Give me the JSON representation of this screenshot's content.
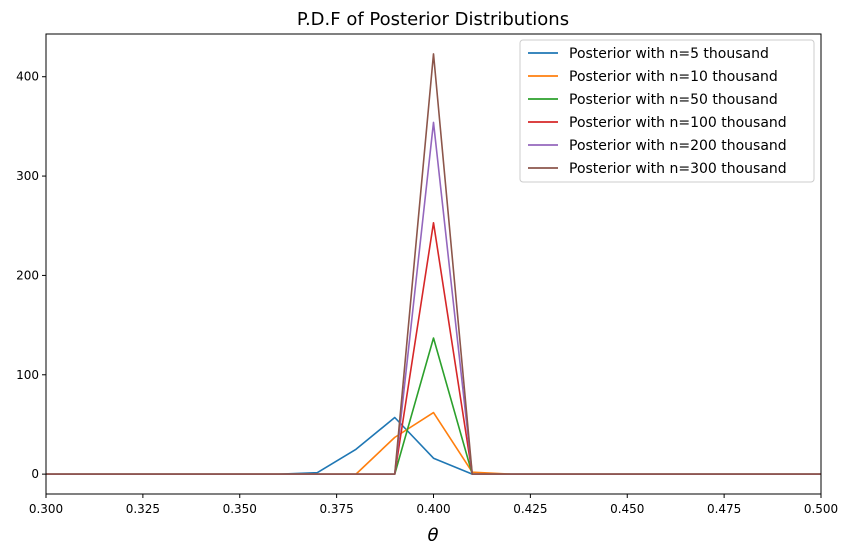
{
  "chart_data": {
    "type": "line",
    "title": "P.D.F of Posterior Distributions",
    "xlabel": "θ",
    "ylabel": "",
    "xlim": [
      0.3,
      0.5
    ],
    "ylim": [
      -20,
      443
    ],
    "xticks": [
      0.3,
      0.325,
      0.35,
      0.375,
      0.4,
      0.425,
      0.45,
      0.475,
      0.5
    ],
    "xtick_labels": [
      "0.300",
      "0.325",
      "0.350",
      "0.375",
      "0.400",
      "0.425",
      "0.450",
      "0.475",
      "0.500"
    ],
    "yticks": [
      0,
      100,
      200,
      300,
      400
    ],
    "ytick_labels": [
      "0",
      "100",
      "200",
      "300",
      "400"
    ],
    "grid": false,
    "legend_position": "top-right",
    "x": [
      0.3,
      0.31,
      0.32,
      0.33,
      0.34,
      0.35,
      0.36,
      0.37,
      0.38,
      0.39,
      0.4,
      0.41,
      0.42,
      0.43,
      0.44,
      0.45,
      0.46,
      0.47,
      0.48,
      0.49,
      0.5
    ],
    "series": [
      {
        "name": "Posterior with n=5 thousand",
        "color": "#1f77b4",
        "values": [
          0,
          0,
          0,
          0,
          0,
          0,
          0,
          1.5,
          25,
          57,
          16,
          0,
          0,
          0,
          0,
          0,
          0,
          0,
          0,
          0,
          0
        ]
      },
      {
        "name": "Posterior with n=10 thousand",
        "color": "#ff7f0e",
        "values": [
          0,
          0,
          0,
          0,
          0,
          0,
          0,
          0,
          0,
          37,
          62,
          2,
          0,
          0,
          0,
          0,
          0,
          0,
          0,
          0,
          0
        ]
      },
      {
        "name": "Posterior with n=50 thousand",
        "color": "#2ca02c",
        "values": [
          0,
          0,
          0,
          0,
          0,
          0,
          0,
          0,
          0,
          0,
          137,
          0,
          0,
          0,
          0,
          0,
          0,
          0,
          0,
          0,
          0
        ]
      },
      {
        "name": "Posterior with n=100 thousand",
        "color": "#d62728",
        "values": [
          0,
          0,
          0,
          0,
          0,
          0,
          0,
          0,
          0,
          0,
          253,
          0,
          0,
          0,
          0,
          0,
          0,
          0,
          0,
          0,
          0
        ]
      },
      {
        "name": "Posterior with n=200 thousand",
        "color": "#9467bd",
        "values": [
          0,
          0,
          0,
          0,
          0,
          0,
          0,
          0,
          0,
          0,
          354,
          0,
          0,
          0,
          0,
          0,
          0,
          0,
          0,
          0,
          0
        ]
      },
      {
        "name": "Posterior with n=300 thousand",
        "color": "#8c564b",
        "values": [
          0,
          0,
          0,
          0,
          0,
          0,
          0,
          0,
          0,
          0,
          423,
          0,
          0,
          0,
          0,
          0,
          0,
          0,
          0,
          0,
          0
        ]
      }
    ]
  }
}
